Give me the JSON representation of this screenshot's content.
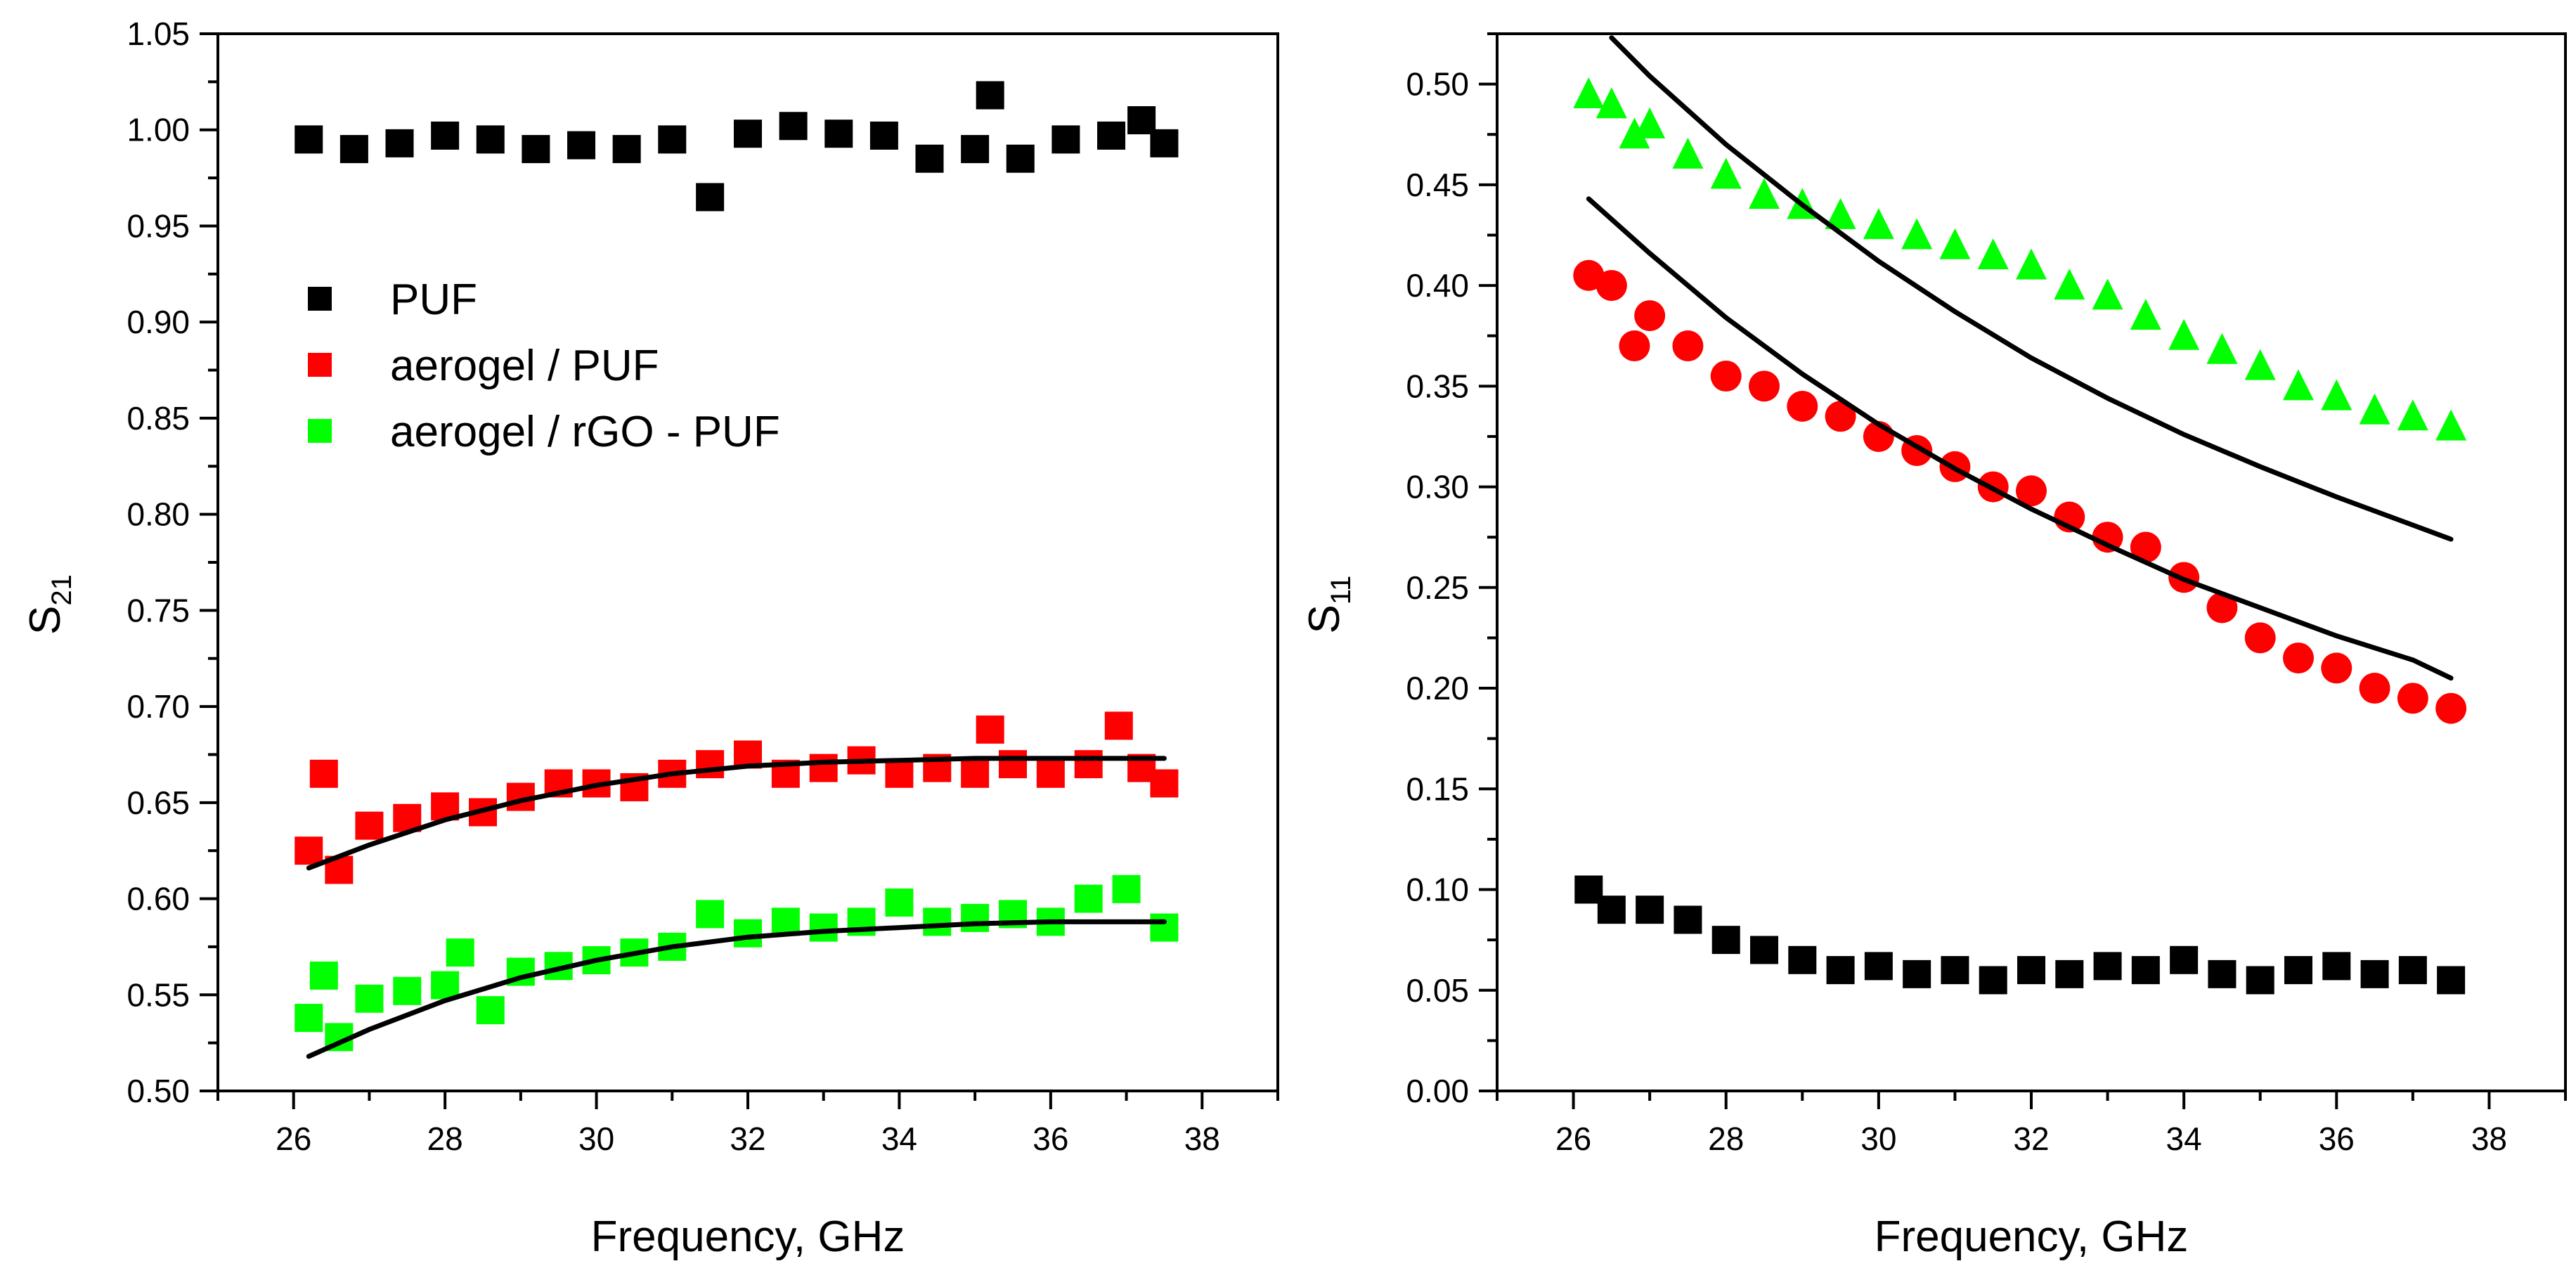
{
  "chart_data": [
    {
      "type": "scatter",
      "panel": "left",
      "title": "",
      "xlabel": "Frequency, GHz",
      "ylabel": "S",
      "ylabel_sub": "21",
      "xlim": [
        25,
        39
      ],
      "ylim": [
        0.5,
        1.05
      ],
      "x_ticks": [
        26,
        28,
        30,
        32,
        34,
        36,
        38
      ],
      "x_tick_labels": [
        "26",
        "28",
        "30",
        "32",
        "34",
        "36",
        "38"
      ],
      "y_ticks": [
        0.5,
        0.55,
        0.6,
        0.65,
        0.7,
        0.75,
        0.8,
        0.85,
        0.9,
        0.95,
        1.0,
        1.05
      ],
      "y_tick_labels": [
        "0.50",
        "0.55",
        "0.60",
        "0.65",
        "0.70",
        "0.75",
        "0.80",
        "0.85",
        "0.90",
        "0.95",
        "1.00",
        "1.05"
      ],
      "legend": {
        "placement": "upper-left",
        "entries": [
          {
            "label": "PUF",
            "color": "#000000",
            "marker": "square"
          },
          {
            "label": "aerogel / PUF",
            "color": "#ff0000",
            "marker": "square"
          },
          {
            "label": "aerogel / rGO - PUF",
            "color": "#00ff00",
            "marker": "square"
          }
        ]
      },
      "series": [
        {
          "name": "PUF",
          "color": "#000000",
          "marker": "square",
          "x": [
            26.2,
            26.8,
            27.4,
            28.0,
            28.6,
            29.2,
            29.8,
            30.4,
            31.0,
            31.5,
            32.0,
            32.6,
            33.2,
            33.8,
            34.4,
            35.0,
            35.2,
            35.6,
            36.2,
            36.8,
            37.2,
            37.5
          ],
          "y": [
            0.995,
            0.99,
            0.993,
            0.997,
            0.995,
            0.99,
            0.992,
            0.99,
            0.995,
            0.965,
            0.998,
            1.002,
            0.998,
            0.997,
            0.985,
            0.99,
            1.018,
            0.985,
            0.995,
            0.997,
            1.005,
            0.993
          ]
        },
        {
          "name": "aerogel / PUF",
          "color": "#ff0000",
          "marker": "square",
          "x": [
            26.2,
            26.4,
            26.6,
            27.0,
            27.5,
            28.0,
            28.5,
            29.0,
            29.5,
            30.0,
            30.5,
            31.0,
            31.5,
            32.0,
            32.5,
            33.0,
            33.5,
            34.0,
            34.5,
            35.0,
            35.2,
            35.5,
            36.0,
            36.5,
            36.9,
            37.2,
            37.5
          ],
          "y": [
            0.625,
            0.665,
            0.615,
            0.638,
            0.642,
            0.648,
            0.645,
            0.653,
            0.66,
            0.66,
            0.658,
            0.665,
            0.67,
            0.675,
            0.665,
            0.668,
            0.672,
            0.665,
            0.668,
            0.665,
            0.688,
            0.67,
            0.665,
            0.67,
            0.69,
            0.668,
            0.66
          ],
          "fit_x": [
            26.2,
            27.0,
            28.0,
            29.0,
            30.0,
            31.0,
            32.0,
            33.0,
            34.0,
            35.0,
            36.0,
            37.0,
            37.5
          ],
          "fit_y": [
            0.616,
            0.628,
            0.641,
            0.651,
            0.659,
            0.665,
            0.669,
            0.671,
            0.672,
            0.673,
            0.673,
            0.673,
            0.673
          ]
        },
        {
          "name": "aerogel / rGO - PUF",
          "color": "#00ff00",
          "marker": "square",
          "x": [
            26.2,
            26.4,
            26.6,
            27.0,
            27.5,
            28.0,
            28.2,
            28.6,
            29.0,
            29.5,
            30.0,
            30.5,
            31.0,
            31.5,
            32.0,
            32.5,
            33.0,
            33.5,
            34.0,
            34.5,
            35.0,
            35.5,
            36.0,
            36.5,
            37.0,
            37.5
          ],
          "y": [
            0.538,
            0.56,
            0.528,
            0.548,
            0.552,
            0.555,
            0.572,
            0.542,
            0.562,
            0.565,
            0.568,
            0.572,
            0.575,
            0.592,
            0.582,
            0.588,
            0.585,
            0.588,
            0.598,
            0.588,
            0.59,
            0.592,
            0.588,
            0.6,
            0.605,
            0.585
          ],
          "fit_x": [
            26.2,
            27.0,
            28.0,
            29.0,
            30.0,
            31.0,
            32.0,
            33.0,
            34.0,
            35.0,
            36.0,
            37.0,
            37.5
          ],
          "fit_y": [
            0.518,
            0.532,
            0.547,
            0.559,
            0.568,
            0.575,
            0.58,
            0.583,
            0.585,
            0.587,
            0.588,
            0.588,
            0.588
          ]
        }
      ]
    },
    {
      "type": "scatter",
      "panel": "right",
      "title": "",
      "xlabel": "Frequency, GHz",
      "ylabel": "S",
      "ylabel_sub": "11",
      "xlim": [
        25,
        39
      ],
      "ylim": [
        0.0,
        0.525
      ],
      "x_ticks": [
        26,
        28,
        30,
        32,
        34,
        36,
        38
      ],
      "x_tick_labels": [
        "26",
        "28",
        "30",
        "32",
        "34",
        "36",
        "38"
      ],
      "y_ticks": [
        0.0,
        0.05,
        0.1,
        0.15,
        0.2,
        0.25,
        0.3,
        0.35,
        0.4,
        0.45,
        0.5
      ],
      "y_tick_labels": [
        "0.00",
        "0.05",
        "0.10",
        "0.15",
        "0.20",
        "0.25",
        "0.30",
        "0.35",
        "0.40",
        "0.45",
        "0.50"
      ],
      "series": [
        {
          "name": "PUF",
          "color": "#000000",
          "marker": "square",
          "x": [
            26.2,
            26.5,
            27.0,
            27.5,
            28.0,
            28.5,
            29.0,
            29.5,
            30.0,
            30.5,
            31.0,
            31.5,
            32.0,
            32.5,
            33.0,
            33.5,
            34.0,
            34.5,
            35.0,
            35.5,
            36.0,
            36.5,
            37.0,
            37.5
          ],
          "y": [
            0.1,
            0.09,
            0.09,
            0.085,
            0.075,
            0.07,
            0.065,
            0.06,
            0.062,
            0.058,
            0.06,
            0.055,
            0.06,
            0.058,
            0.062,
            0.06,
            0.065,
            0.058,
            0.055,
            0.06,
            0.062,
            0.058,
            0.06,
            0.055
          ]
        },
        {
          "name": "aerogel / PUF",
          "color": "#ff0000",
          "marker": "circle",
          "x": [
            26.2,
            26.5,
            26.8,
            27.0,
            27.5,
            28.0,
            28.5,
            29.0,
            29.5,
            30.0,
            30.5,
            31.0,
            31.5,
            32.0,
            32.5,
            33.0,
            33.5,
            34.0,
            34.5,
            35.0,
            35.5,
            36.0,
            36.5,
            37.0,
            37.5
          ],
          "y": [
            0.405,
            0.4,
            0.37,
            0.385,
            0.37,
            0.355,
            0.35,
            0.34,
            0.335,
            0.325,
            0.318,
            0.31,
            0.3,
            0.298,
            0.285,
            0.275,
            0.27,
            0.255,
            0.24,
            0.225,
            0.215,
            0.21,
            0.2,
            0.195,
            0.19
          ],
          "fit_x": [
            26.2,
            27.0,
            28.0,
            29.0,
            30.0,
            31.0,
            32.0,
            33.0,
            34.0,
            35.0,
            36.0,
            37.0,
            37.5
          ],
          "fit_y": [
            0.443,
            0.416,
            0.384,
            0.356,
            0.331,
            0.309,
            0.289,
            0.271,
            0.254,
            0.24,
            0.226,
            0.214,
            0.205
          ]
        },
        {
          "name": "aerogel / rGO - PUF",
          "color": "#00ff00",
          "marker": "triangle",
          "x": [
            26.2,
            26.5,
            26.8,
            27.0,
            27.5,
            28.0,
            28.5,
            29.0,
            29.5,
            30.0,
            30.5,
            31.0,
            31.5,
            32.0,
            32.5,
            33.0,
            33.5,
            34.0,
            34.5,
            35.0,
            35.5,
            36.0,
            36.5,
            37.0,
            37.5
          ],
          "y": [
            0.495,
            0.49,
            0.475,
            0.48,
            0.465,
            0.455,
            0.445,
            0.44,
            0.435,
            0.43,
            0.425,
            0.42,
            0.415,
            0.41,
            0.4,
            0.395,
            0.385,
            0.375,
            0.368,
            0.36,
            0.35,
            0.345,
            0.338,
            0.335,
            0.33
          ],
          "fit_x": [
            26.5,
            27.0,
            28.0,
            29.0,
            30.0,
            31.0,
            32.0,
            33.0,
            34.0,
            35.0,
            36.0,
            37.0,
            37.5
          ],
          "fit_y": [
            0.523,
            0.504,
            0.47,
            0.44,
            0.412,
            0.387,
            0.364,
            0.344,
            0.326,
            0.31,
            0.295,
            0.281,
            0.274
          ]
        }
      ]
    }
  ]
}
